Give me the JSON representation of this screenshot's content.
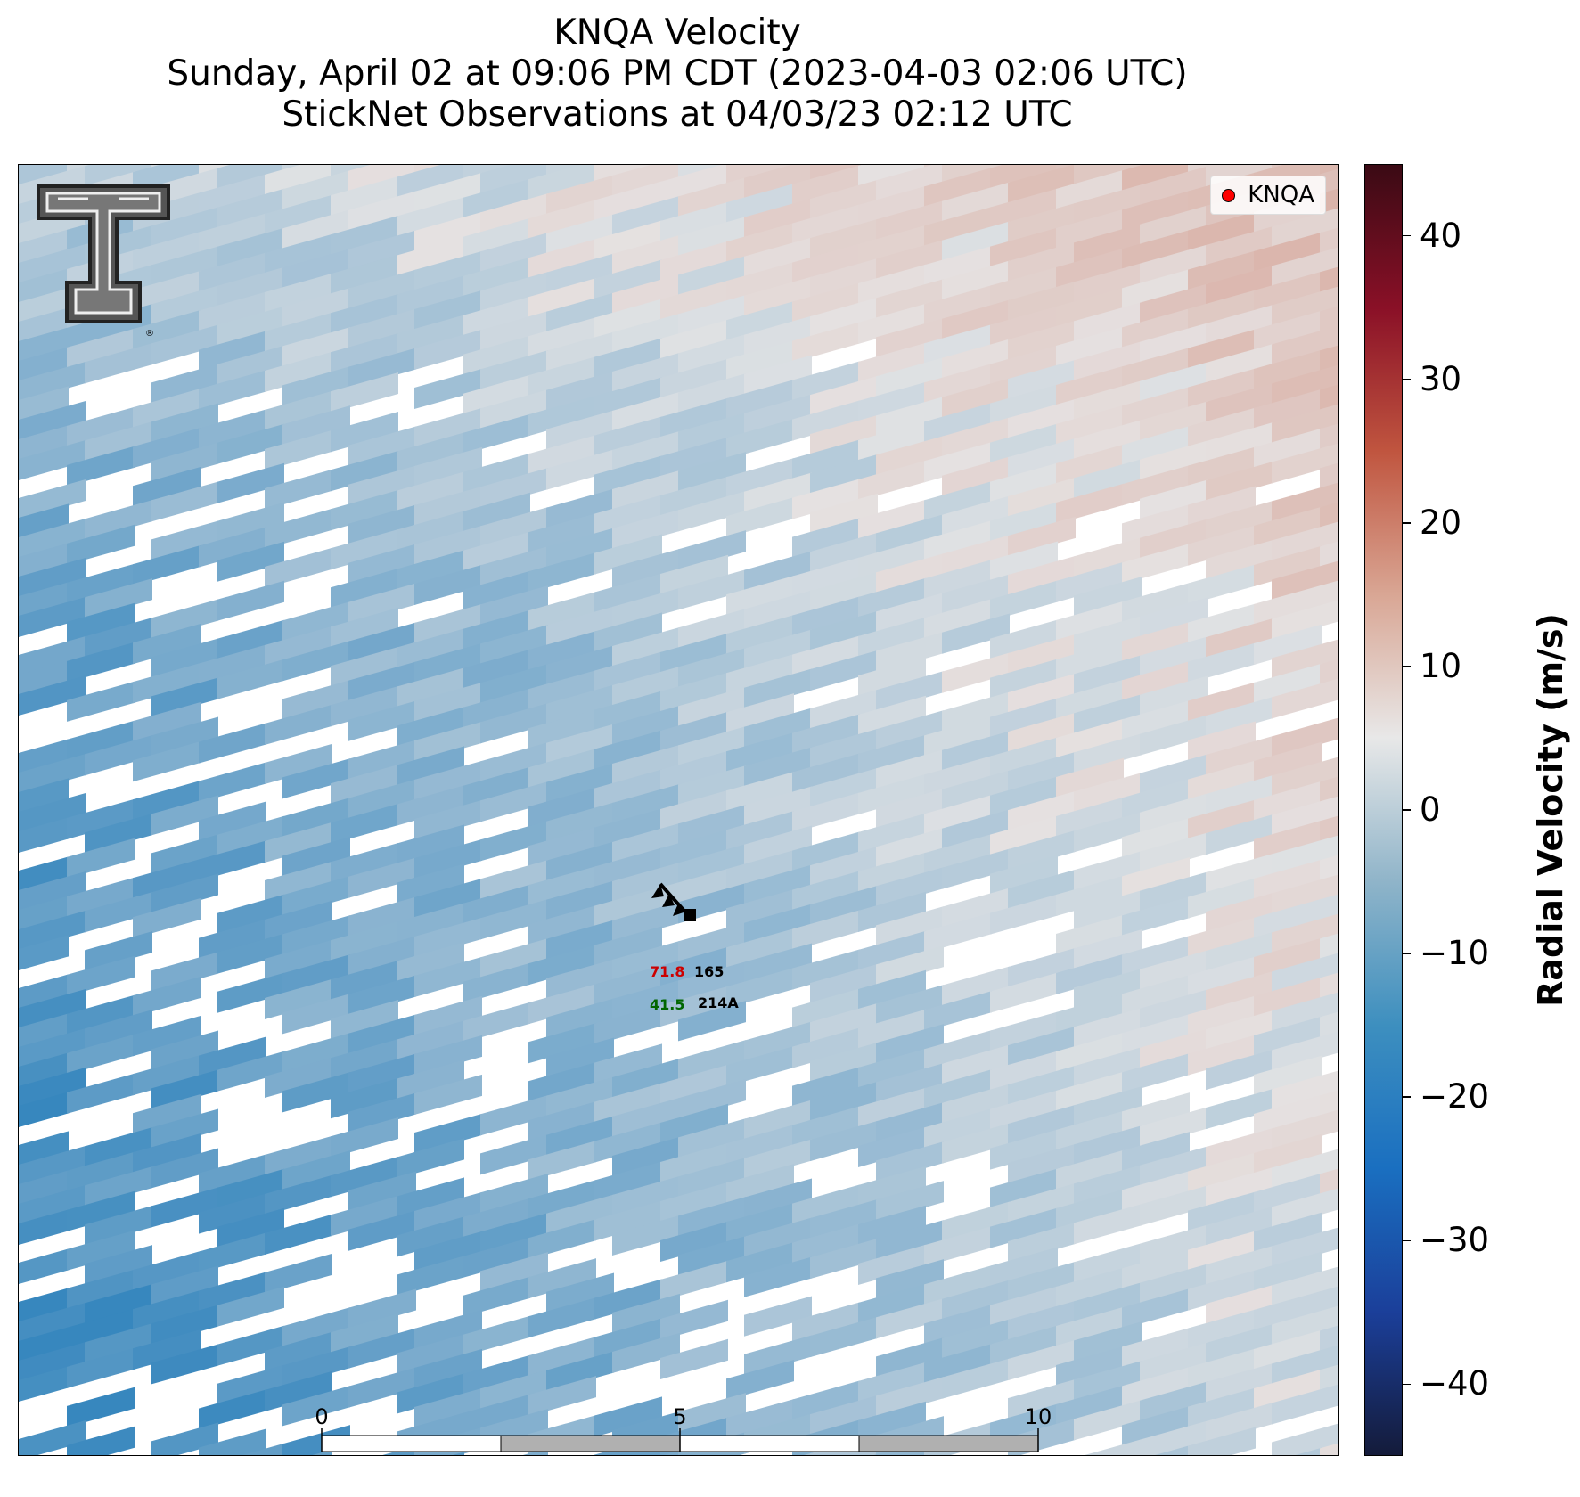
{
  "title": {
    "line1": "KNQA Velocity",
    "line2": "Sunday, April 02 at 09:06 PM CDT (2023-04-03 02:06 UTC)",
    "line3": "StickNet Observations at 04/03/23 02:12 UTC"
  },
  "legend": {
    "label": "KNQA",
    "marker_color": "#ff0000"
  },
  "logo": {
    "text": "TT",
    "registered": "®"
  },
  "colorbar": {
    "label": "Radial Velocity (m/s)",
    "range": [
      -45,
      45
    ],
    "ticks": [
      {
        "value": 40,
        "label": "40"
      },
      {
        "value": 30,
        "label": "30"
      },
      {
        "value": 20,
        "label": "20"
      },
      {
        "value": 10,
        "label": "10"
      },
      {
        "value": 0,
        "label": "0"
      },
      {
        "value": -10,
        "label": "−10"
      },
      {
        "value": -20,
        "label": "−20"
      },
      {
        "value": -30,
        "label": "−30"
      },
      {
        "value": -40,
        "label": "−40"
      }
    ],
    "colors": [
      "#141b3a",
      "#1b3f9a",
      "#1a6fc0",
      "#3d8fbf",
      "#8fb4c9",
      "#e8e8e8",
      "#d9a694",
      "#c0553f",
      "#8a1027",
      "#3a0a14"
    ]
  },
  "station": {
    "temperature": "71.8",
    "pressure": "165",
    "dewpoint": "41.5",
    "id": "214A",
    "temp_color": "#cc0000",
    "dew_color": "#006600"
  },
  "scale_bar": {
    "ticks": [
      "0",
      "5",
      "10"
    ],
    "unit": "km",
    "segment_colors": [
      "#ffffff",
      "#b0b0b0",
      "#ffffff",
      "#b0b0b0"
    ]
  }
}
